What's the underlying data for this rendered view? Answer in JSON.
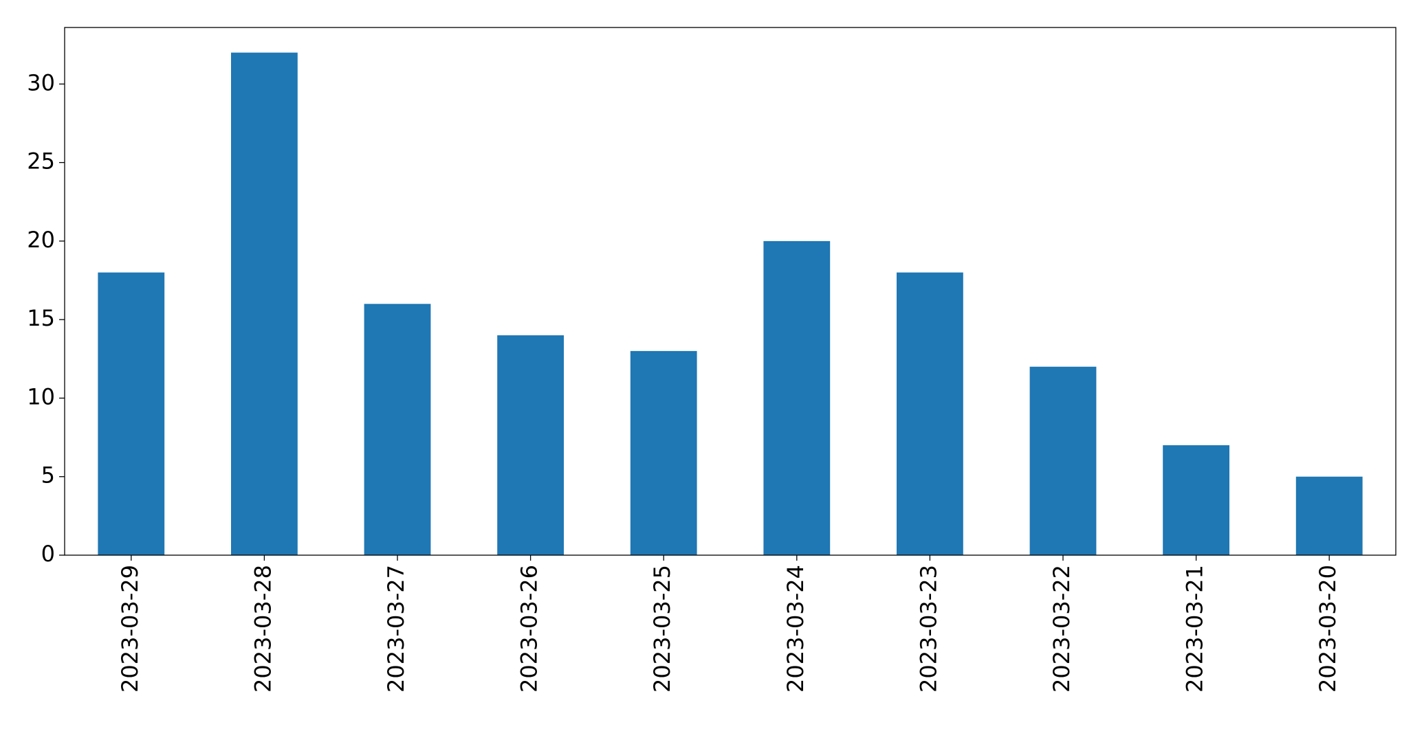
{
  "chart_data": {
    "type": "bar",
    "categories": [
      "2023-03-29",
      "2023-03-28",
      "2023-03-27",
      "2023-03-26",
      "2023-03-25",
      "2023-03-24",
      "2023-03-23",
      "2023-03-22",
      "2023-03-21",
      "2023-03-20"
    ],
    "values": [
      18,
      32,
      16,
      14,
      13,
      20,
      18,
      12,
      7,
      5
    ],
    "color": "#1f77b4",
    "ylim": [
      0,
      33.6
    ],
    "yticks": [
      0,
      5,
      10,
      15,
      20,
      25,
      30
    ],
    "grid": false
  }
}
